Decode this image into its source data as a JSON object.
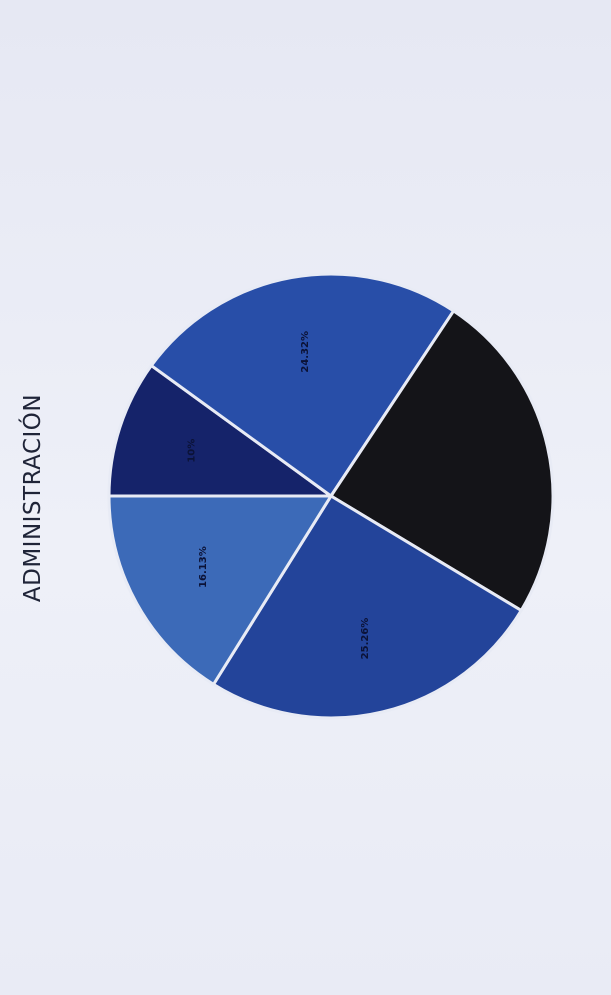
{
  "chart_data": {
    "type": "pie",
    "title": "ADMINISTRACIÓN",
    "start_angle_deg": 180,
    "direction": "clockwise",
    "slices": [
      {
        "label": "10%",
        "value": 10.0,
        "color": "#15236a"
      },
      {
        "label": "24.32%",
        "value": 24.32,
        "color": "#284ea8"
      },
      {
        "label": "",
        "value": 24.32,
        "color": "#141418"
      },
      {
        "label": "25.26%",
        "value": 25.26,
        "color": "#23449a"
      },
      {
        "label": "16.13%",
        "value": 16.13,
        "color": "#3c6ab8"
      }
    ]
  }
}
